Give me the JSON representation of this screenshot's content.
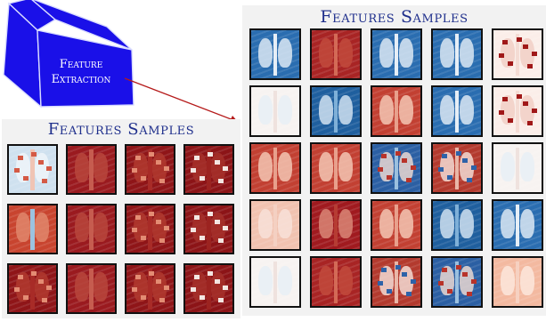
{
  "block": {
    "line1": "Feature",
    "line2": "Extraction",
    "face_color": "#1a10e8",
    "edge_color": "#d9dcff"
  },
  "arrow_color": "#b51a1a",
  "right_panel": {
    "title": "Features Samples",
    "rows": 5,
    "cols": 5,
    "tiles": [
      "blue-lungs-light",
      "red-dark",
      "blue-lungs-light",
      "blue-lungs-light",
      "white-red-speckle",
      "white-faint",
      "blue-lungs-dark",
      "red-lungs-light",
      "blue-lungs-light",
      "white-red-speckle",
      "red-lungs-light",
      "red-lungs-light",
      "blue-ribs-red",
      "red-ribs-blue",
      "white-faint",
      "red-pale",
      "red-lungs-dark",
      "red-lungs-light",
      "blue-lungs-dark",
      "blue-lungs-light",
      "white-faint",
      "red-dark",
      "red-ribs-blue",
      "blue-ribs-red",
      "orange-lungs-light"
    ]
  },
  "left_panel": {
    "title": "Features Samples",
    "rows": 3,
    "cols": 4,
    "tiles": [
      "blue-pale-red",
      "red-dark-ribs",
      "red-dark-noise",
      "red-dark-patches",
      "red-warm-blue",
      "red-dark-ribs",
      "red-dark-noise",
      "red-dark-patches",
      "red-dark-noise",
      "red-dark-ribs",
      "red-dark-noise",
      "red-dark-patches"
    ]
  },
  "tile_styles": {
    "blue-lungs-light": {
      "bg": "#2a6db0",
      "lung": "#dbe8f3",
      "spine": "#e6eef6",
      "speck": ""
    },
    "blue-lungs-dark": {
      "bg": "#1f5f9e",
      "lung": "#cfe1f0",
      "spine": "#7fb0d8",
      "speck": ""
    },
    "red-dark": {
      "bg": "#a82424",
      "lung": "#c24a3c",
      "spine": "#d36a56",
      "speck": ""
    },
    "white-red-speckle": {
      "bg": "#fbeee9",
      "lung": "#f1cfc5",
      "spine": "#f4dcd4",
      "speck": "#a01818"
    },
    "white-faint": {
      "bg": "#f7f3f1",
      "lung": "#e7eef6",
      "spine": "#efe2de",
      "speck": ""
    },
    "red-lungs-light": {
      "bg": "#c24032",
      "lung": "#f3c6b3",
      "spine": "#e8a08c",
      "speck": ""
    },
    "blue-ribs-red": {
      "bg": "#2b5fa3",
      "lung": "#e9d7d1",
      "spine": "#9bc0df",
      "speck": "#b8332a"
    },
    "red-ribs-blue": {
      "bg": "#b33a2e",
      "lung": "#f2dbd2",
      "spine": "#e9b7a8",
      "speck": "#2e62a8"
    },
    "red-pale": {
      "bg": "#f1c2b0",
      "lung": "#f8e1d8",
      "spine": "#f4d0c2",
      "speck": ""
    },
    "red-lungs-dark": {
      "bg": "#a01a1f",
      "lung": "#d98675",
      "spine": "#b63c33",
      "speck": ""
    },
    "orange-lungs-light": {
      "bg": "#f3b9a0",
      "lung": "#fbe6dc",
      "spine": "#f6d1c1",
      "speck": ""
    },
    "blue-pale-red": {
      "bg": "#cfe1ef",
      "lung": "#eef4f9",
      "spine": "#f0c4b4",
      "speck": "#d45a45"
    },
    "red-dark-ribs": {
      "bg": "#9a1a1f",
      "lung": "#b8463c",
      "spine": "#c65c4f",
      "speck": ""
    },
    "red-dark-noise": {
      "bg": "#8f1518",
      "lung": "#b2392f",
      "spine": "#a82b27",
      "speck": "#e38c73"
    },
    "red-dark-patches": {
      "bg": "#8c1417",
      "lung": "#a6302a",
      "spine": "#9c2320",
      "speck": "#f3e6e2"
    },
    "red-warm-blue": {
      "bg": "#c8442f",
      "lung": "#e0866b",
      "spine": "#9cc3e0",
      "speck": ""
    }
  }
}
